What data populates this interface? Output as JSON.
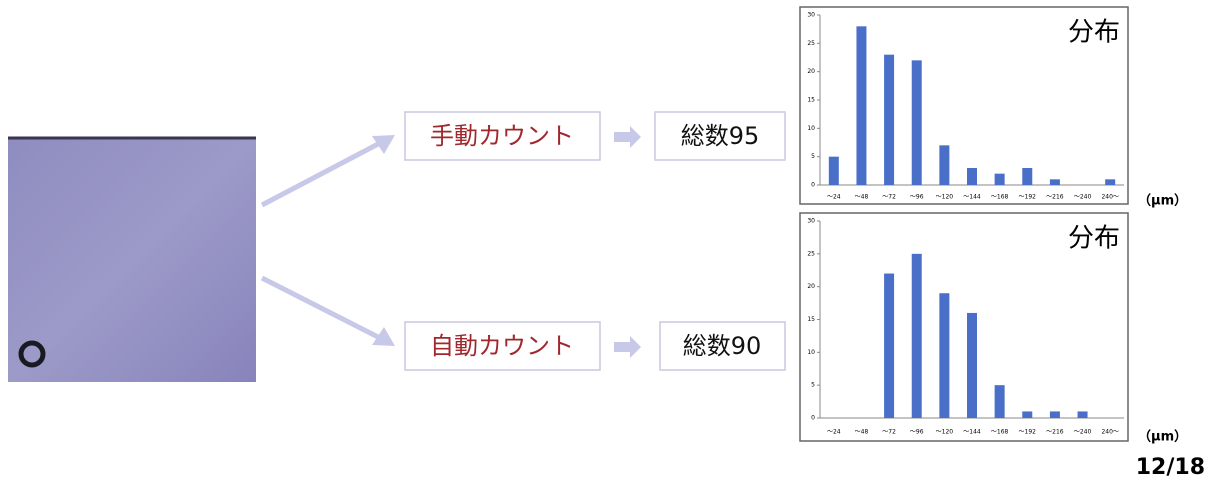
{
  "flow": {
    "manual": "手動カウント",
    "manual_total": "総数95",
    "auto": "自動カウント",
    "auto_total": "総数90"
  },
  "page_number": "12/18",
  "chart_data": [
    {
      "type": "bar",
      "title": "分布",
      "x_label": "（μm）",
      "categories": [
        "～24",
        "～48",
        "～72",
        "～96",
        "～120",
        "～144",
        "～168",
        "～192",
        "～216",
        "～240",
        "240～"
      ],
      "values": [
        5,
        28,
        23,
        22,
        7,
        3,
        2,
        3,
        1,
        0,
        1
      ],
      "color": "#4a6fc8",
      "ylim": [
        0,
        30
      ],
      "yticks": [
        0,
        5,
        10,
        15,
        20,
        25,
        30
      ],
      "grid": false
    },
    {
      "type": "bar",
      "title": "分布",
      "x_label": "（μm）",
      "categories": [
        "～24",
        "～48",
        "～72",
        "～96",
        "～120",
        "～144",
        "～168",
        "～192",
        "～216",
        "～240",
        "240～"
      ],
      "values": [
        0,
        0,
        22,
        25,
        19,
        16,
        5,
        1,
        1,
        1,
        0
      ],
      "color": "#4a6fc8",
      "ylim": [
        0,
        30
      ],
      "yticks": [
        0,
        5,
        10,
        15,
        20,
        25,
        30
      ],
      "grid": false
    }
  ]
}
